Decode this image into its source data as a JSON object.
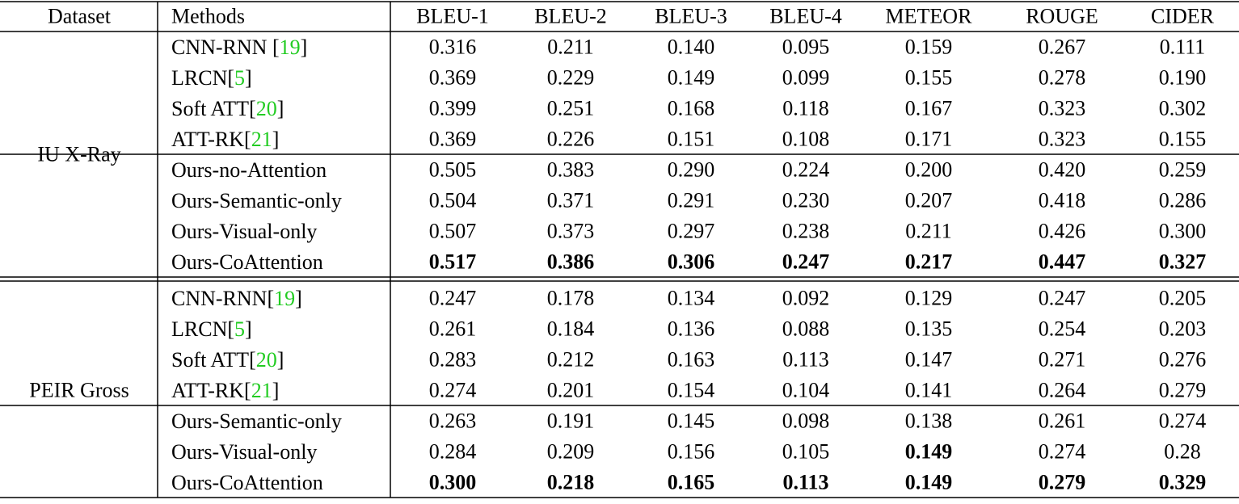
{
  "table": {
    "header": [
      "Dataset",
      "Methods",
      "BLEU-1",
      "BLEU-2",
      "BLEU-3",
      "BLEU-4",
      "METEOR",
      "ROUGE",
      "CIDER"
    ],
    "cite_color": "#22cc22",
    "groups": [
      {
        "dataset": "IU X-Ray",
        "sections": [
          [
            {
              "method": [
                "CNN-RNN [",
                "19",
                "]"
              ],
              "values": [
                "0.316",
                "0.211",
                "0.140",
                "0.095",
                "0.159",
                "0.267",
                "0.111"
              ],
              "bold": []
            },
            {
              "method": [
                "LRCN[",
                "5",
                "]"
              ],
              "values": [
                "0.369",
                "0.229",
                "0.149",
                "0.099",
                "0.155",
                "0.278",
                "0.190"
              ],
              "bold": []
            },
            {
              "method": [
                "Soft ATT[",
                "20",
                "]"
              ],
              "values": [
                "0.399",
                "0.251",
                "0.168",
                "0.118",
                "0.167",
                "0.323",
                "0.302"
              ],
              "bold": []
            },
            {
              "method": [
                "ATT-RK[",
                "21",
                "]"
              ],
              "values": [
                "0.369",
                "0.226",
                "0.151",
                "0.108",
                "0.171",
                "0.323",
                "0.155"
              ],
              "bold": []
            }
          ],
          [
            {
              "method": [
                "Ours-no-Attention"
              ],
              "values": [
                "0.505",
                "0.383",
                "0.290",
                "0.224",
                "0.200",
                "0.420",
                "0.259"
              ],
              "bold": []
            },
            {
              "method": [
                "Ours-Semantic-only"
              ],
              "values": [
                "0.504",
                "0.371",
                "0.291",
                "0.230",
                "0.207",
                "0.418",
                "0.286"
              ],
              "bold": []
            },
            {
              "method": [
                "Ours-Visual-only"
              ],
              "values": [
                "0.507",
                "0.373",
                "0.297",
                "0.238",
                "0.211",
                "0.426",
                "0.300"
              ],
              "bold": []
            },
            {
              "method": [
                "Ours-CoAttention"
              ],
              "values": [
                "0.517",
                "0.386",
                "0.306",
                "0.247",
                "0.217",
                "0.447",
                "0.327"
              ],
              "bold": [
                0,
                1,
                2,
                3,
                4,
                5,
                6
              ]
            }
          ]
        ]
      },
      {
        "dataset": "PEIR Gross",
        "sections": [
          [
            {
              "method": [
                "CNN-RNN[",
                "19",
                "]"
              ],
              "values": [
                "0.247",
                "0.178",
                "0.134",
                "0.092",
                "0.129",
                "0.247",
                "0.205"
              ],
              "bold": []
            },
            {
              "method": [
                "LRCN[",
                "5",
                "]"
              ],
              "values": [
                "0.261",
                "0.184",
                "0.136",
                "0.088",
                "0.135",
                "0.254",
                "0.203"
              ],
              "bold": []
            },
            {
              "method": [
                "Soft ATT[",
                "20",
                "]"
              ],
              "values": [
                "0.283",
                "0.212",
                "0.163",
                "0.113",
                "0.147",
                "0.271",
                "0.276"
              ],
              "bold": []
            },
            {
              "method": [
                "ATT-RK[",
                "21",
                "]"
              ],
              "values": [
                "0.274",
                "0.201",
                "0.154",
                "0.104",
                "0.141",
                "0.264",
                "0.279"
              ],
              "bold": []
            }
          ],
          [
            {
              "method": [
                "Ours-Semantic-only"
              ],
              "values": [
                "0.263",
                "0.191",
                "0.145",
                "0.098",
                "0.138",
                "0.261",
                "0.274"
              ],
              "bold": []
            },
            {
              "method": [
                "Ours-Visual-only"
              ],
              "values": [
                "0.284",
                "0.209",
                "0.156",
                "0.105",
                "0.149",
                "0.274",
                "0.28"
              ],
              "bold": [
                4
              ]
            },
            {
              "method": [
                "Ours-CoAttention"
              ],
              "values": [
                "0.300",
                "0.218",
                "0.165",
                "0.113",
                "0.149",
                "0.279",
                "0.329"
              ],
              "bold": [
                0,
                1,
                2,
                3,
                4,
                5,
                6
              ]
            }
          ]
        ]
      }
    ]
  }
}
